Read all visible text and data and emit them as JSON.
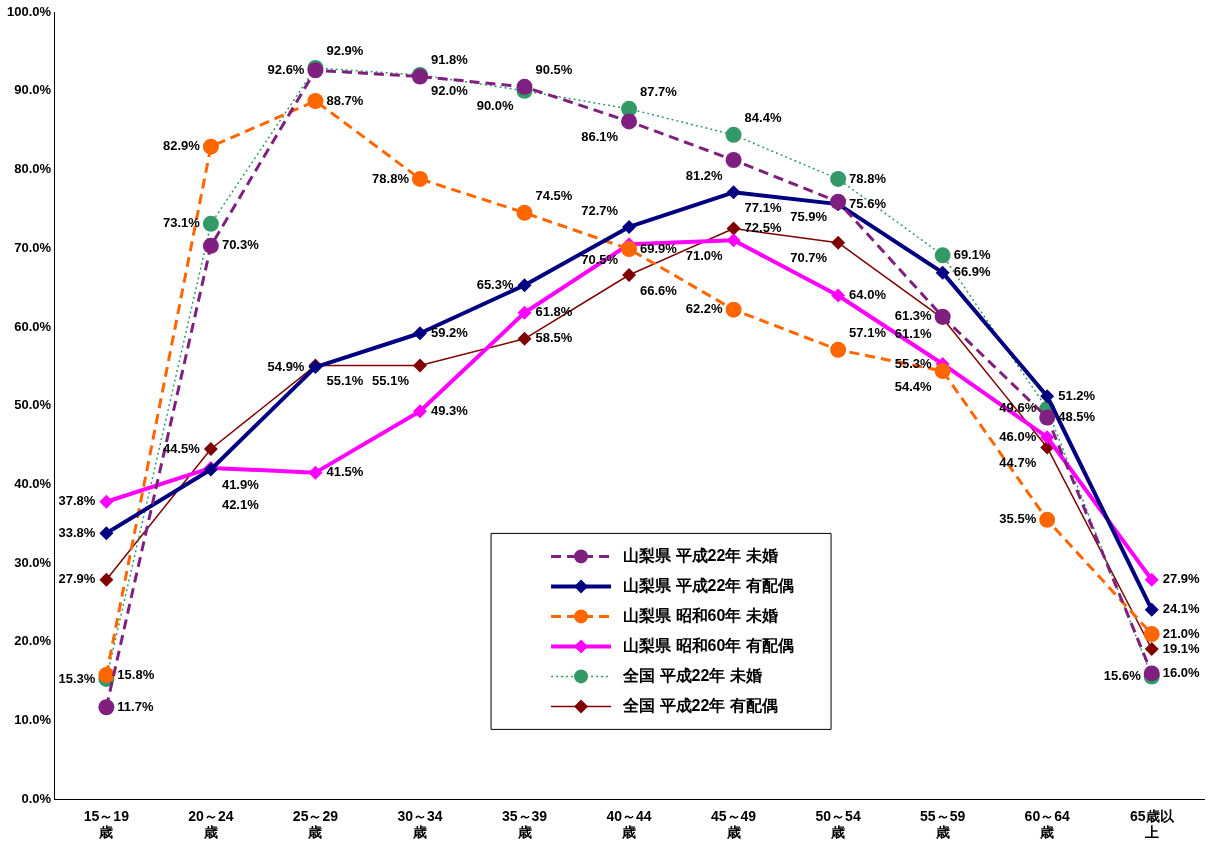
{
  "chart_data": {
    "type": "line",
    "categories": [
      "15～19歳",
      "20～24歳",
      "25～29歳",
      "30～34歳",
      "35～39歳",
      "40～44歳",
      "45～49歳",
      "50～54歳",
      "55～59歳",
      "60～64歳",
      "65歳以上"
    ],
    "ylim": [
      0,
      100
    ],
    "yticks": [
      {
        "value": 0,
        "label": "0.0%"
      },
      {
        "value": 10,
        "label": "10.0%"
      },
      {
        "value": 20,
        "label": "20.0%"
      },
      {
        "value": 30,
        "label": "30.0%"
      },
      {
        "value": 40,
        "label": "40.0%"
      },
      {
        "value": 50,
        "label": "50.0%"
      },
      {
        "value": 60,
        "label": "60.0%"
      },
      {
        "value": 70,
        "label": "70.0%"
      },
      {
        "value": 80,
        "label": "80.0%"
      },
      {
        "value": 90,
        "label": "90.0%"
      },
      {
        "value": 100,
        "label": "100.0%"
      }
    ],
    "grid": false,
    "legend": "bottom",
    "series": [
      {
        "name": "山梨県 平成22年 未婚",
        "color": "#7f1f7f",
        "marker": "circle",
        "line_style": "dashed",
        "values": [
          11.7,
          70.3,
          92.6,
          91.8,
          90.5,
          86.1,
          81.2,
          75.9,
          61.3,
          48.5,
          16.0
        ],
        "value_labels": [
          "11.7%",
          "70.3%",
          "92.6%",
          "91.8%",
          "90.5%",
          "86.1%",
          "81.2%",
          "75.9%",
          "61.3%",
          "48.5%",
          "16.0%"
        ]
      },
      {
        "name": "山梨県 平成22年 有配偶",
        "color": "#000080",
        "marker": "diamond",
        "line_style": "solid",
        "values": [
          33.8,
          41.9,
          54.9,
          59.2,
          65.3,
          72.7,
          77.1,
          75.6,
          66.9,
          51.2,
          24.1
        ],
        "value_labels": [
          "33.8%",
          "41.9%",
          "54.9%",
          "59.2%",
          "65.3%",
          "72.7%",
          "77.1%",
          "75.6%",
          "66.9%",
          "51.2%",
          "24.1%"
        ]
      },
      {
        "name": "山梨県 昭和60年 未婚",
        "color": "#ff6600",
        "marker": "circle",
        "line_style": "dashed",
        "values": [
          15.8,
          82.9,
          88.7,
          78.8,
          74.5,
          69.9,
          62.2,
          57.1,
          54.4,
          35.5,
          21.0
        ],
        "value_labels": [
          "15.8%",
          "82.9%",
          "88.7%",
          "78.8%",
          "74.5%",
          "69.9%",
          "62.2%",
          "57.1%",
          "54.4%",
          "35.5%",
          "21.0%"
        ]
      },
      {
        "name": "山梨県 昭和60年 有配偶",
        "color": "#ff00ff",
        "marker": "diamond",
        "line_style": "solid",
        "values": [
          37.8,
          42.1,
          41.5,
          49.3,
          61.8,
          70.5,
          71.0,
          64.0,
          55.3,
          46.0,
          27.9
        ],
        "value_labels": [
          "37.8%",
          "42.1%",
          "41.5%",
          "49.3%",
          "61.8%",
          "70.5%",
          "71.0%",
          "64.0%",
          "55.3%",
          "46.0%",
          "27.9%"
        ]
      },
      {
        "name": "全国 平成22年 未婚",
        "color": "#339966",
        "marker": "circle",
        "line_style": "dotted",
        "values": [
          15.3,
          73.1,
          92.9,
          92.0,
          90.0,
          87.7,
          84.4,
          78.8,
          69.1,
          49.6,
          15.6
        ],
        "value_labels": [
          "15.3%",
          "73.1%",
          "92.9%",
          "92.0%",
          "90.0%",
          "87.7%",
          "84.4%",
          "78.8%",
          "69.1%",
          "49.6%",
          "15.6%"
        ]
      },
      {
        "name": "全国 平成22年 有配偶",
        "color": "#800000",
        "marker": "diamond",
        "line_style": "solid",
        "values": [
          27.9,
          44.5,
          55.1,
          55.1,
          58.5,
          66.6,
          72.5,
          70.7,
          61.1,
          44.7,
          19.1
        ],
        "value_labels": [
          "27.9%",
          "44.5%",
          "55.1%",
          "55.1%",
          "58.5%",
          "66.6%",
          "72.5%",
          "70.7%",
          "61.1%",
          "44.7%",
          "19.1%"
        ]
      }
    ]
  }
}
